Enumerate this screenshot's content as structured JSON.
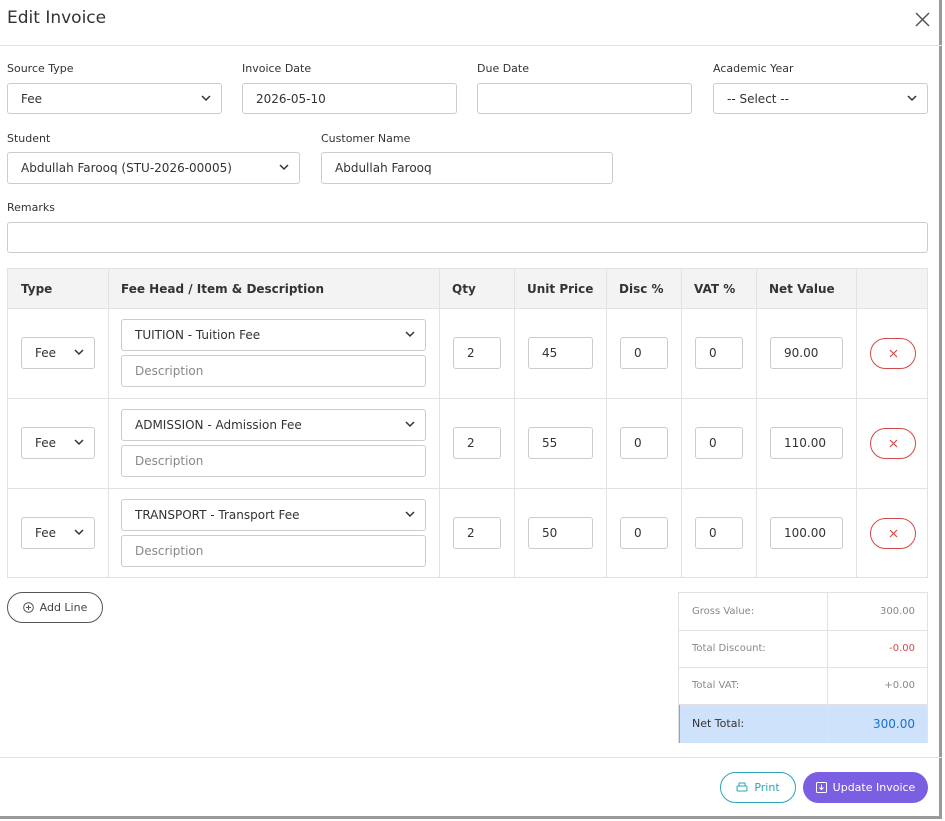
{
  "header": {
    "title": "Edit Invoice"
  },
  "form": {
    "source_type": {
      "label": "Source Type",
      "value": "Fee"
    },
    "invoice_date": {
      "label": "Invoice Date",
      "value": "2026-05-10"
    },
    "due_date": {
      "label": "Due Date"
    },
    "academic_year": {
      "label": "Academic Year",
      "value": "-- Select --"
    },
    "student": {
      "label": "Student",
      "value": "Abdullah Farooq (STU-2026-00005)"
    },
    "customer_name": {
      "label": "Customer Name",
      "value": "Abdullah Farooq"
    },
    "remarks": {
      "label": "Remarks"
    }
  },
  "table": {
    "columns": [
      "Type",
      "Fee Head / Item & Description",
      "Qty",
      "Unit Price",
      "Disc %",
      "VAT %",
      "Net Value"
    ],
    "rows": [
      {
        "type": "Fee",
        "item": "TUITION - Tuition Fee",
        "description": "Description",
        "qty": 2,
        "unit_price": 45,
        "disc": 0,
        "vat": 0,
        "net_value": "90.00"
      },
      {
        "type": "Fee",
        "item": "ADMISSION - Admission Fee",
        "description": "Description",
        "qty": 2,
        "unit_price": 55,
        "disc": 0,
        "vat": 0,
        "net_value": "110.00"
      },
      {
        "type": "Fee",
        "item": "TRANSPORT - Transport Fee",
        "description": "Description",
        "qty": 2,
        "unit_price": 50,
        "disc": 0,
        "vat": 0,
        "net_value": "100.00"
      }
    ]
  },
  "summary": [
    {
      "label": "Gross Value:",
      "value": "300.00"
    },
    {
      "label": "Total Discount:",
      "value": "-0.00"
    },
    {
      "label": "Total VAT:",
      "value": "+0.00"
    },
    {
      "label": "Net Total:",
      "value": "300.00"
    }
  ],
  "buttons": {
    "add_line": "Add Line",
    "print": "Print",
    "update": "Update Invoice"
  }
}
